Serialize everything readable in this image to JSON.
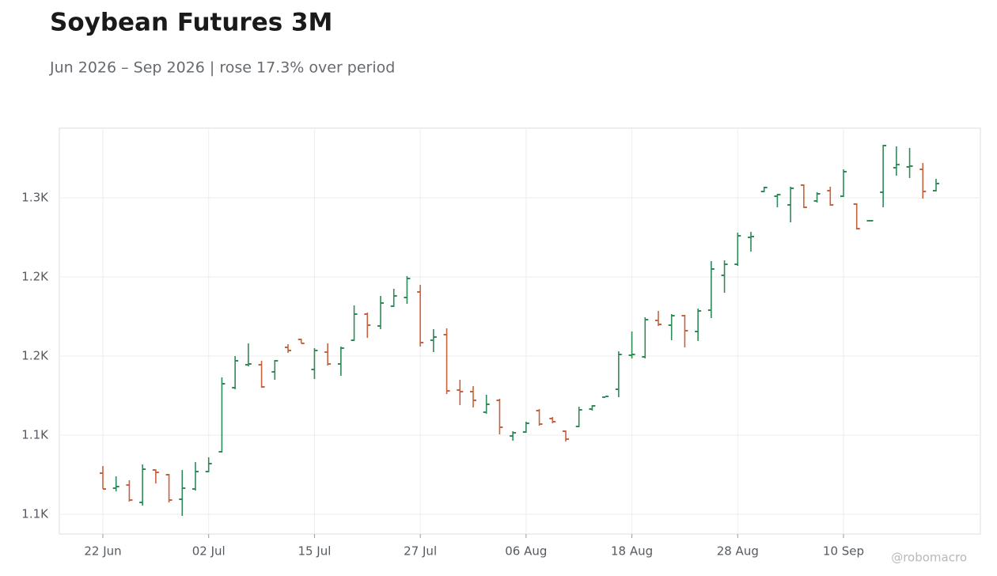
{
  "chart_data": {
    "type": "ohlc",
    "title": "Soybean Futures 3M",
    "subtitle": "Jun 2026 – Sep 2026 | rose 17.3% over period",
    "watermark": "@robomacro",
    "categories": [
      "22 Jun",
      null,
      null,
      null,
      null,
      null,
      null,
      null,
      "02 Jul",
      null,
      null,
      null,
      null,
      null,
      null,
      null,
      "15 Jul",
      null,
      null,
      null,
      null,
      null,
      null,
      null,
      "27 Jul",
      null,
      null,
      null,
      null,
      null,
      null,
      null,
      "06 Aug",
      null,
      null,
      null,
      null,
      null,
      null,
      null,
      "18 Aug",
      null,
      null,
      null,
      null,
      null,
      null,
      null,
      "28 Aug",
      null,
      null,
      null,
      null,
      null,
      null,
      null,
      "10 Sep",
      null,
      null,
      null,
      null,
      null,
      null,
      null
    ],
    "open": [
      1126,
      1116.5,
      1118.5,
      1107.5,
      1128,
      1125,
      1109.5,
      1116,
      1127,
      1139.5,
      1180,
      1194.5,
      1194.5,
      1190,
      1205.5,
      1210.5,
      1191.5,
      1202.5,
      1195,
      1210,
      1226.5,
      1219,
      1231.5,
      1237,
      1240.5,
      1210,
      1213.5,
      1178.5,
      1177.5,
      1164.5,
      1172,
      1149.5,
      1152,
      1165.5,
      1160.5,
      1152.5,
      1155.5,
      1166.5,
      1174,
      1179,
      1200.5,
      1199.5,
      1222.5,
      1219.5,
      1225.5,
      1215.5,
      1229,
      1251,
      1258,
      1275,
      1304,
      1301,
      1295.5,
      1308,
      1298,
      1304.5,
      1301,
      1296,
      1285.5,
      1303.5,
      1319,
      1319.5,
      1318,
      1304.5
    ],
    "high": [
      1130.5,
      1124,
      1121.5,
      1131.5,
      1128.5,
      1125.5,
      1128,
      1133,
      1136,
      1186.5,
      1200,
      1208,
      1197,
      1197.5,
      1207.5,
      1211,
      1205,
      1208,
      1206,
      1232,
      1227.5,
      1238,
      1242.5,
      1250.5,
      1245,
      1217,
      1217.5,
      1185,
      1181,
      1175.5,
      1173,
      1152.5,
      1158.5,
      1166.5,
      1161.5,
      1153,
      1168,
      1169,
      1174.5,
      1203,
      1215.5,
      1224.5,
      1228.5,
      1226.5,
      1226,
      1230,
      1260,
      1260.5,
      1278,
      1278.5,
      1307,
      1302.5,
      1307,
      1308.5,
      1303.5,
      1307,
      1318,
      1296.5,
      1285.5,
      1333.5,
      1332.5,
      1331.5,
      1322,
      1312
    ],
    "low": [
      1116,
      1114.5,
      1108,
      1105.5,
      1119.5,
      1107.5,
      1099,
      1115,
      1126.5,
      1139,
      1179,
      1193.5,
      1180,
      1185,
      1202,
      1208,
      1185.5,
      1194,
      1187.5,
      1209.5,
      1211.5,
      1217,
      1231,
      1233,
      1206,
      1202.5,
      1176,
      1169,
      1167.5,
      1163.5,
      1150.5,
      1146.5,
      1151.5,
      1156,
      1157.5,
      1146,
      1155,
      1165.5,
      1174,
      1174,
      1198.5,
      1198.5,
      1219,
      1210,
      1205.5,
      1209.5,
      1224,
      1240,
      1257,
      1266,
      1303.5,
      1294,
      1284.5,
      1293.5,
      1297,
      1295,
      1300.5,
      1280,
      1285.5,
      1294,
      1314,
      1312.5,
      1299.5,
      1304
    ],
    "close": [
      1116,
      1117.5,
      1109,
      1128.5,
      1126.5,
      1109,
      1116.5,
      1127,
      1132,
      1182.5,
      1197,
      1195,
      1180.5,
      1197,
      1203.5,
      1208,
      1203.5,
      1195,
      1205,
      1226.5,
      1219.5,
      1233.5,
      1238,
      1249,
      1208.5,
      1212,
      1178,
      1177.5,
      1172,
      1169.5,
      1155,
      1151.5,
      1157.5,
      1157,
      1158.5,
      1147.5,
      1166,
      1168.5,
      1174.5,
      1201,
      1201,
      1223,
      1220,
      1225.5,
      1216,
      1228.5,
      1255,
      1258,
      1276,
      1275.5,
      1306.5,
      1302,
      1306,
      1294,
      1302.5,
      1295.5,
      1316.5,
      1280.5,
      1285.5,
      1333,
      1321,
      1320,
      1304,
      1309
    ],
    "up_color": "#2e8b57",
    "down_color": "#c8623e",
    "ylim": [
      1087.5,
      1344
    ],
    "yticks": [
      {
        "value": 1100,
        "label": "1.1K"
      },
      {
        "value": 1150,
        "label": "1.1K"
      },
      {
        "value": 1200,
        "label": "1.2K"
      },
      {
        "value": 1250,
        "label": "1.2K"
      },
      {
        "value": 1300,
        "label": "1.3K"
      }
    ],
    "grid": true
  }
}
